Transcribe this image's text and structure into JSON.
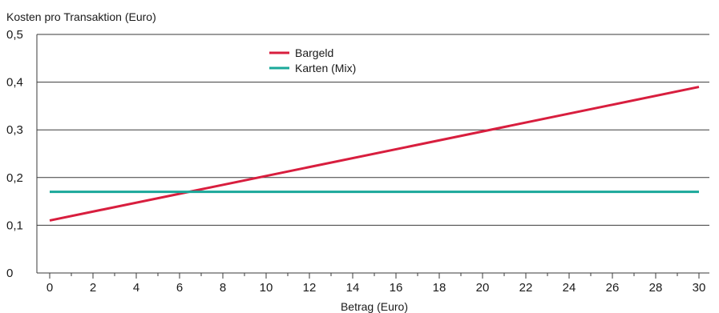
{
  "chart_data": {
    "type": "line",
    "ylabel": "Kosten pro Transaktion (Euro)",
    "xlabel": "Betrag (Euro)",
    "x": [
      0,
      30
    ],
    "xlim": [
      0,
      30
    ],
    "ylim": [
      0,
      0.5
    ],
    "x_ticks": [
      0,
      2,
      4,
      6,
      8,
      10,
      12,
      14,
      16,
      18,
      20,
      22,
      24,
      26,
      28,
      30
    ],
    "y_ticks": [
      0,
      0.1,
      0.2,
      0.3,
      0.4,
      0.5
    ],
    "y_tick_labels": [
      "0",
      "0,1",
      "0,2",
      "0,3",
      "0,4",
      "0,5"
    ],
    "grid": true,
    "legend_position": "top-center",
    "series": [
      {
        "name": "Bargeld",
        "color": "#d81e3e",
        "x": [
          0,
          30
        ],
        "values": [
          0.11,
          0.39
        ]
      },
      {
        "name": "Karten (Mix)",
        "color": "#1aa89a",
        "x": [
          0,
          30
        ],
        "values": [
          0.17,
          0.17
        ]
      }
    ]
  }
}
